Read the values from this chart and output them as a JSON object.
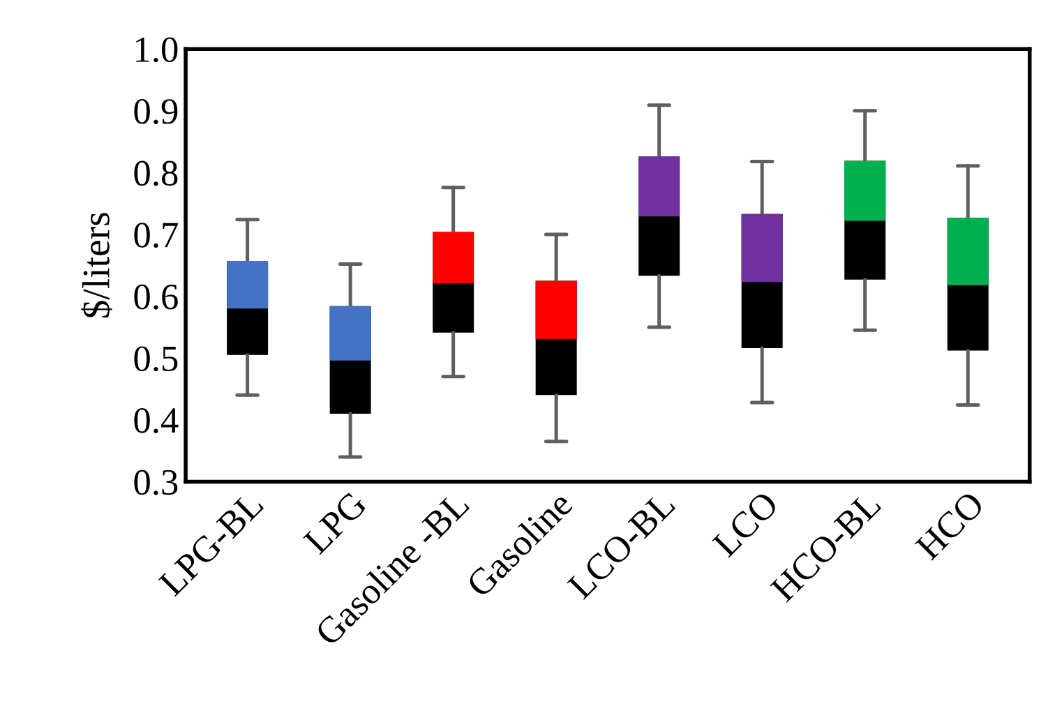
{
  "chart_data": {
    "type": "box",
    "ylabel": "$/liters",
    "categories": [
      "LPG-BL",
      "LPG",
      "Gasoline -BL",
      "Gasoline",
      "LCO-BL",
      "LCO",
      "HCO-BL",
      "HCO"
    ],
    "boxes": [
      {
        "low": 0.44,
        "q1": 0.505,
        "median": 0.58,
        "q3": 0.657,
        "high": 0.724
      },
      {
        "low": 0.34,
        "q1": 0.41,
        "median": 0.496,
        "q3": 0.584,
        "high": 0.652
      },
      {
        "low": 0.47,
        "q1": 0.541,
        "median": 0.621,
        "q3": 0.704,
        "high": 0.776
      },
      {
        "low": 0.365,
        "q1": 0.44,
        "median": 0.531,
        "q3": 0.625,
        "high": 0.7
      },
      {
        "low": 0.55,
        "q1": 0.633,
        "median": 0.729,
        "q3": 0.826,
        "high": 0.909
      },
      {
        "low": 0.428,
        "q1": 0.516,
        "median": 0.623,
        "q3": 0.733,
        "high": 0.818
      },
      {
        "low": 0.545,
        "q1": 0.627,
        "median": 0.722,
        "q3": 0.819,
        "high": 0.9
      },
      {
        "low": 0.424,
        "q1": 0.512,
        "median": 0.618,
        "q3": 0.727,
        "high": 0.811
      }
    ],
    "colors": [
      [
        "#000000",
        "#4472c4"
      ],
      [
        "#000000",
        "#4472c4"
      ],
      [
        "#000000",
        "#ff0000"
      ],
      [
        "#000000",
        "#ff0000"
      ],
      [
        "#000000",
        "#7030a0"
      ],
      [
        "#000000",
        "#7030a0"
      ],
      [
        "#000000",
        "#00b050"
      ],
      [
        "#000000",
        "#00b050"
      ]
    ],
    "ylim": [
      0.3,
      1.0
    ],
    "yticks": [
      {
        "value": 0.3,
        "label": "0.3"
      },
      {
        "value": 0.4,
        "label": "0.4"
      },
      {
        "value": 0.5,
        "label": "0.5"
      },
      {
        "value": 0.6,
        "label": "0.6"
      },
      {
        "value": 0.7,
        "label": "0.7"
      },
      {
        "value": 0.8,
        "label": "0.8"
      },
      {
        "value": 0.9,
        "label": "0.9"
      },
      {
        "value": 1.0,
        "label": "1.0"
      }
    ],
    "grid": false
  }
}
